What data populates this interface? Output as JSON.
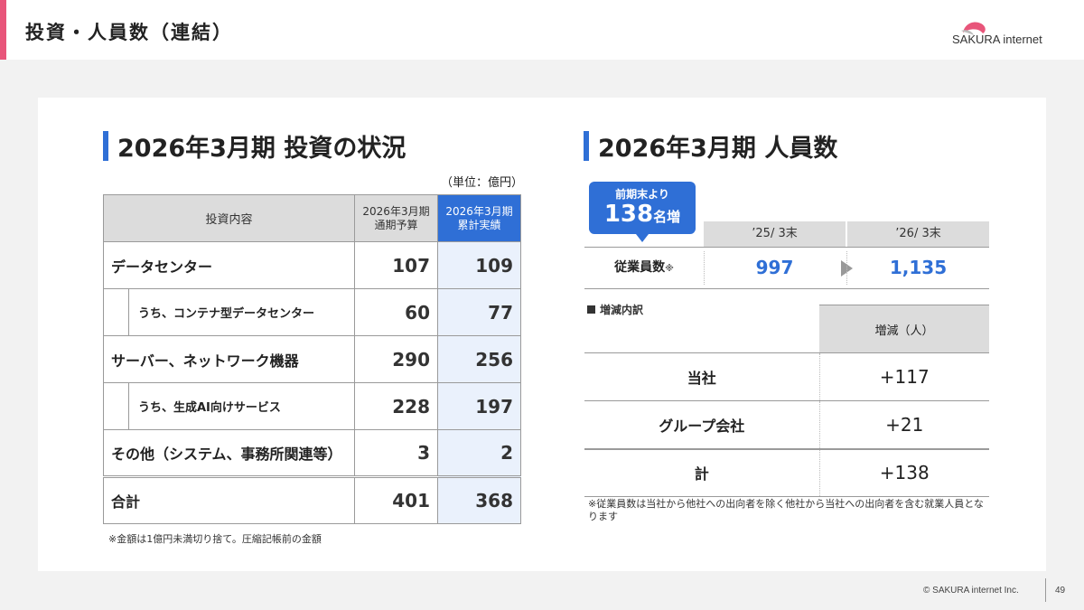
{
  "header": {
    "title": "投資・人員数（連結）",
    "logo_text": "SAKURA internet"
  },
  "investment": {
    "title": "2026年3月期 投資の状況",
    "unit": "（単位：億円）",
    "col_item": "投資内容",
    "col_budget_l1": "2026年3月期",
    "col_budget_l2": "通期予算",
    "col_actual_l1": "2026年3月期",
    "col_actual_l2": "累計実績",
    "rows": [
      {
        "label": "データセンター",
        "budget": "107",
        "actual": "109"
      },
      {
        "label": "うち、コンテナ型データセンター",
        "budget": "60",
        "actual": "77"
      },
      {
        "label": "サーバー、ネットワーク機器",
        "budget": "290",
        "actual": "256"
      },
      {
        "label": "うち、生成AI向けサービス",
        "budget": "228",
        "actual": "197"
      },
      {
        "label": "その他",
        "label_sub": "（システム、事務所関連等）",
        "budget": "3",
        "actual": "2"
      },
      {
        "label": "合計",
        "budget": "401",
        "actual": "368"
      }
    ],
    "note": "※金額は1億円未満切り捨て。圧縮記帳前の金額"
  },
  "staff": {
    "title": "2026年3月期 人員数",
    "bubble_line1": "前期末より",
    "bubble_number": "138",
    "bubble_suffix": "名増",
    "col_prev": "’25/ 3末",
    "col_curr": "’26/ 3末",
    "row_label": "従業員数",
    "row_mark": "※",
    "prev_value": "997",
    "curr_value": "1,135",
    "breakdown_title": "増減内訳",
    "breakdown_col": "増減（人）",
    "breakdown": [
      {
        "label": "当社",
        "value": "+117"
      },
      {
        "label": "グループ会社",
        "value": "+21"
      },
      {
        "label": "計",
        "value": "+138"
      }
    ],
    "note": "※従業員数は当社から他社への出向者を除く他社から当社への出向者を含む就業人員となります"
  },
  "footer": {
    "copyright": "© SAKURA internet Inc.",
    "page": "49"
  },
  "colors": {
    "accent_blue": "#2f6fd6",
    "accent_pink": "#e8557a",
    "header_gray": "#dcdcdc",
    "actual_bg": "#eaf1fc"
  }
}
